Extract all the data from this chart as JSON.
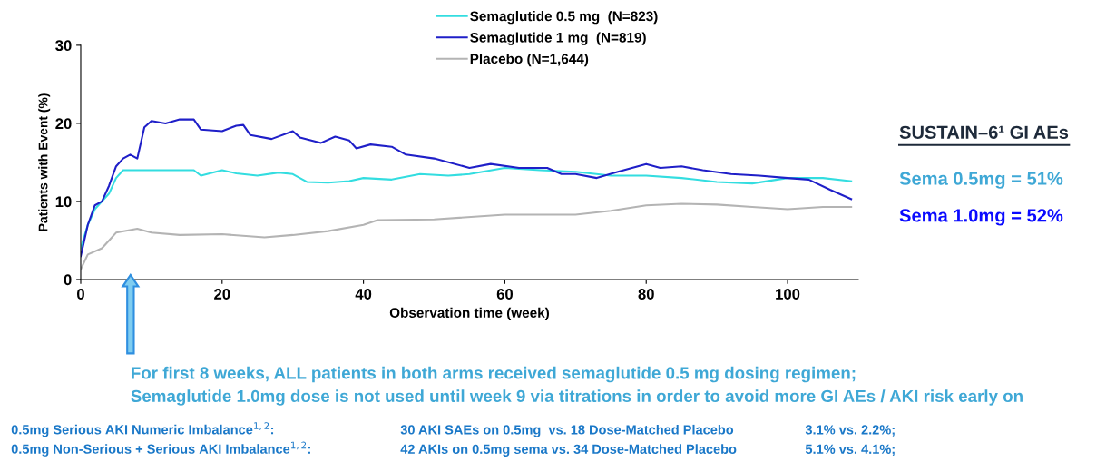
{
  "chart_data": {
    "type": "line",
    "xlabel": "Observation time (week)",
    "ylabel": "Patients with Event (%)",
    "xlim": [
      0,
      110
    ],
    "xticks": [
      0,
      20,
      40,
      60,
      80,
      100
    ],
    "ylim": [
      0,
      30
    ],
    "yticks": [
      0,
      10,
      20,
      30
    ],
    "grid": false,
    "legend": "top right",
    "marker": "none",
    "line_style": "solid",
    "series": [
      {
        "name": "Semaglutide 0.5 mg  (N=823)",
        "color": "#33dde0",
        "x": [
          0,
          1,
          2,
          3,
          4,
          5,
          6,
          8,
          10,
          12,
          14,
          16,
          17,
          20,
          22,
          25,
          28,
          30,
          32,
          35,
          38,
          40,
          44,
          48,
          52,
          55,
          60,
          65,
          70,
          75,
          80,
          85,
          90,
          95,
          100,
          105,
          109
        ],
        "values": [
          4,
          7,
          9,
          10,
          11,
          13,
          14,
          14,
          14,
          14,
          14,
          14,
          13.3,
          14,
          13.6,
          13.3,
          13.7,
          13.5,
          12.5,
          12.4,
          12.6,
          13,
          12.8,
          13.5,
          13.3,
          13.5,
          14.3,
          14,
          13.8,
          13.3,
          13.3,
          13,
          12.5,
          12.3,
          13,
          13,
          12.6
        ]
      },
      {
        "name": "Semaglutide 1 mg  (N=819)",
        "color": "#1f1fc8",
        "x": [
          0,
          1,
          2,
          3,
          4,
          5,
          6,
          7,
          8,
          9,
          10,
          12,
          14,
          16,
          17,
          20,
          22,
          23,
          24,
          27,
          30,
          31,
          34,
          36,
          38,
          39,
          41,
          44,
          46,
          50,
          55,
          58,
          62,
          66,
          68,
          70,
          73,
          76,
          80,
          82,
          85,
          88,
          92,
          96,
          100,
          103,
          106,
          109
        ],
        "values": [
          3,
          7,
          9.5,
          10,
          12,
          14.5,
          15.5,
          16,
          15.5,
          19.5,
          20.3,
          20,
          20.5,
          20.5,
          19.2,
          19,
          19.7,
          19.8,
          18.5,
          18,
          19,
          18.2,
          17.5,
          18.3,
          17.8,
          16.8,
          17.3,
          17,
          16,
          15.5,
          14.3,
          14.8,
          14.3,
          14.3,
          13.5,
          13.5,
          13,
          13.8,
          14.8,
          14.3,
          14.5,
          14,
          13.5,
          13.3,
          13,
          12.8,
          11.5,
          10.3
        ]
      },
      {
        "name": "Placebo (N=1,644)",
        "color": "#b4b4b4",
        "x": [
          0,
          1,
          3,
          4,
          5,
          8,
          10,
          14,
          20,
          26,
          30,
          35,
          40,
          42,
          50,
          60,
          70,
          75,
          80,
          85,
          90,
          95,
          100,
          105,
          109
        ],
        "values": [
          1.3,
          3.2,
          4,
          5,
          6,
          6.5,
          6,
          5.7,
          5.8,
          5.4,
          5.7,
          6.2,
          7,
          7.6,
          7.7,
          8.3,
          8.3,
          8.8,
          9.5,
          9.7,
          9.6,
          9.3,
          9,
          9.3,
          9.3
        ]
      }
    ],
    "annotations": [
      "SUSTAIN–6¹ GI AEs",
      "Sema 0.5mg = 51%",
      "Sema 1.0mg = 52%",
      "For first 8 weeks, ALL patients in both arms received semaglutide 0.5 mg dosing regimen;",
      "Semaglutide 1.0mg dose is not used until week 9 via titrations in order to avoid more GI AEs / AKI risk early on",
      "0.5mg Serious AKI Numeric Imbalance$^{1,2}$:",
      "30 AKI SAEs on 0.5mg  vs. 18 Dose-Matched Placebo",
      "3.1% vs. 2.2%;",
      "0.5mg Non-Serious + Serious AKI Imbalance$^{1,2}$:",
      "42 AKIs on 0.5mg sema vs. 34 Dose-Matched Placebo",
      "5.1% vs. 4.1%;"
    ]
  }
}
